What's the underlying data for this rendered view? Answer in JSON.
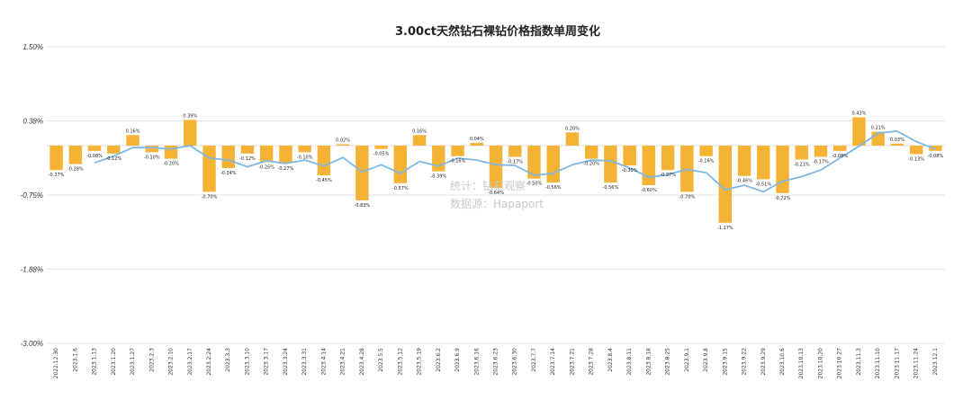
{
  "chart_data": {
    "type": "bar",
    "title": "3.00ct天然钻石裸钻价格指数单周变化",
    "ylim": [
      -3.0,
      1.5
    ],
    "yticks": [
      "1.50%",
      "0.38%",
      "-0.75%",
      "-1.88%",
      "-3.00%"
    ],
    "ytick_values": [
      1.5,
      0.375,
      -0.75,
      -1.875,
      -3.0
    ],
    "grid": true,
    "bar_color": "#f5b335",
    "line_color": "#7cb8e8",
    "categories": [
      "2022.12.30",
      "2023.1.6",
      "2023.1.13",
      "2023.1.20",
      "2023.1.27",
      "2023.2.3",
      "2023.2.10",
      "2023.2.17",
      "2023.2.24",
      "2023.3.3",
      "2023.3.10",
      "2023.3.17",
      "2023.3.24",
      "2023.3.31",
      "2023.4.14",
      "2023.4.21",
      "2023.4.28",
      "2023.5.5",
      "2023.5.12",
      "2023.5.19",
      "2023.6.2",
      "2023.6.9",
      "2023.6.16",
      "2023.6.23",
      "2023.6.30",
      "2023.7.7",
      "2023.7.14",
      "2023.7.21",
      "2023.7.28",
      "2023.8.4",
      "2023.8.11",
      "2023.8.18",
      "2023.8.25",
      "2023.9.1",
      "2023.9.8",
      "2023.9.15",
      "2023.9.22",
      "2023.9.29",
      "2023.10.6",
      "2023.10.13",
      "2023.10.20",
      "2023.10.27",
      "2023.11.3",
      "2023.11.10",
      "2023.11.17",
      "2023.11.24",
      "2023.12.1"
    ],
    "series": [
      {
        "type": "bar",
        "values": [
          -0.37,
          -0.28,
          -0.08,
          -0.12,
          0.16,
          -0.1,
          -0.2,
          0.39,
          -0.7,
          -0.34,
          -0.12,
          -0.25,
          -0.27,
          -0.1,
          -0.45,
          0.02,
          -0.83,
          -0.05,
          -0.57,
          0.16,
          -0.39,
          -0.16,
          0.04,
          -0.64,
          -0.17,
          -0.5,
          -0.56,
          0.2,
          -0.2,
          -0.56,
          -0.3,
          -0.6,
          -0.37,
          -0.7,
          -0.16,
          -1.17,
          -0.46,
          -0.51,
          -0.72,
          -0.21,
          -0.17,
          -0.08,
          0.43,
          0.21,
          0.03,
          -0.13,
          -0.08
        ],
        "labels": [
          "-0.37%",
          "-0.28%",
          "-0.08%",
          "-0.12%",
          "0.16%",
          "-0.10%",
          "-0.20%",
          "0.39%",
          "-0.70%",
          "-0.34%",
          "-0.12%",
          "-0.25%",
          "-0.27%",
          "-0.10%",
          "-0.45%",
          "0.02%",
          "-0.83%",
          "-0.05%",
          "-0.57%",
          "0.16%",
          "-0.39%",
          "-0.16%",
          "0.04%",
          "-0.64%",
          "-0.17%",
          "-0.50%",
          "-0.56%",
          "0.20%",
          "-0.20%",
          "-0.56%",
          "-0.30%",
          "-0.60%",
          "-0.37%",
          "-0.70%",
          "-0.16%",
          "-1.17%",
          "-0.46%",
          "-0.51%",
          "-0.72%",
          "-0.21%",
          "-0.17%",
          "-0.08%",
          "0.43%",
          "0.21%",
          "0.03%",
          "-0.13%",
          "-0.08%"
        ]
      },
      {
        "type": "line",
        "values": [
          null,
          null,
          -0.26,
          -0.16,
          -0.03,
          -0.03,
          -0.05,
          0.0,
          -0.19,
          -0.22,
          -0.32,
          -0.23,
          -0.27,
          -0.22,
          -0.31,
          -0.18,
          -0.4,
          -0.29,
          -0.42,
          -0.24,
          -0.31,
          -0.19,
          -0.22,
          -0.29,
          -0.3,
          -0.45,
          -0.42,
          -0.29,
          -0.22,
          -0.23,
          -0.34,
          -0.48,
          -0.44,
          -0.36,
          -0.41,
          -0.67,
          -0.6,
          -0.7,
          -0.54,
          -0.47,
          -0.37,
          -0.19,
          -0.01,
          0.19,
          0.22,
          0.06,
          -0.05
        ]
      }
    ]
  },
  "watermark": {
    "line1": "统计：钻石观察",
    "line2": "数据源：Hapaport"
  }
}
